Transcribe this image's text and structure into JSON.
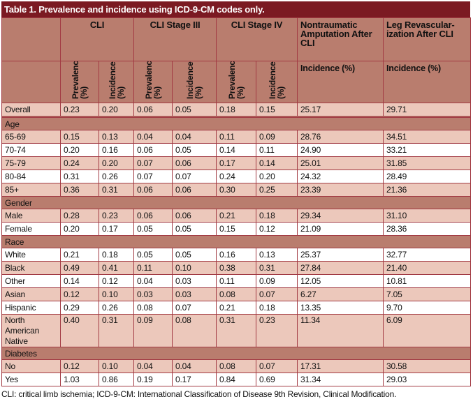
{
  "title": "Table 1. Prevalence and incidence using ICD-9-CM codes only.",
  "header": {
    "groups": [
      "CLI",
      "CLI Stage III",
      "CLI Stage IV",
      "Nontraumatic Amputation After CLI",
      "Leg Revascular-ization After CLI"
    ],
    "prevalence": "Prevalence (%)",
    "incidence": "Incidence (%)"
  },
  "rows": [
    {
      "type": "data",
      "shade": "light",
      "label": "Overall",
      "values": [
        "0.23",
        "0.20",
        "0.06",
        "0.05",
        "0.18",
        "0.15",
        "25.17",
        "29.71"
      ]
    },
    {
      "type": "section",
      "label": ""
    },
    {
      "type": "section",
      "label": "Age"
    },
    {
      "type": "data",
      "shade": "light",
      "label": "65-69",
      "values": [
        "0.15",
        "0.13",
        "0.04",
        "0.04",
        "0.11",
        "0.09",
        "28.76",
        "34.51"
      ]
    },
    {
      "type": "data",
      "shade": "white",
      "label": "70-74",
      "values": [
        "0.20",
        "0.16",
        "0.06",
        "0.05",
        "0.14",
        "0.11",
        "24.90",
        "33.21"
      ]
    },
    {
      "type": "data",
      "shade": "light",
      "label": "75-79",
      "values": [
        "0.24",
        "0.20",
        "0.07",
        "0.06",
        "0.17",
        "0.14",
        "25.01",
        "31.85"
      ]
    },
    {
      "type": "data",
      "shade": "white",
      "label": "80-84",
      "values": [
        "0.31",
        "0.26",
        "0.07",
        "0.07",
        "0.24",
        "0.20",
        "24.32",
        "28.49"
      ]
    },
    {
      "type": "data",
      "shade": "light",
      "label": "85+",
      "values": [
        "0.36",
        "0.31",
        "0.06",
        "0.06",
        "0.30",
        "0.25",
        "23.39",
        "21.36"
      ]
    },
    {
      "type": "section",
      "label": "Gender"
    },
    {
      "type": "data",
      "shade": "light",
      "label": "Male",
      "values": [
        "0.28",
        "0.23",
        "0.06",
        "0.06",
        "0.21",
        "0.18",
        "29.34",
        "31.10"
      ]
    },
    {
      "type": "data",
      "shade": "white",
      "label": "Female",
      "values": [
        "0.20",
        "0.17",
        "0.05",
        "0.05",
        "0.15",
        "0.12",
        "21.09",
        "28.36"
      ]
    },
    {
      "type": "section",
      "label": "Race"
    },
    {
      "type": "data",
      "shade": "white",
      "label": "White",
      "values": [
        "0.21",
        "0.18",
        "0.05",
        "0.05",
        "0.16",
        "0.13",
        "25.37",
        "32.77"
      ]
    },
    {
      "type": "data",
      "shade": "light",
      "label": "Black",
      "values": [
        "0.49",
        "0.41",
        "0.11",
        "0.10",
        "0.38",
        "0.31",
        "27.84",
        "21.40"
      ]
    },
    {
      "type": "data",
      "shade": "white",
      "label": "Other",
      "values": [
        "0.14",
        "0.12",
        "0.04",
        "0.03",
        "0.11",
        "0.09",
        "12.05",
        "10.81"
      ]
    },
    {
      "type": "data",
      "shade": "light",
      "label": "Asian",
      "values": [
        "0.12",
        "0.10",
        "0.03",
        "0.03",
        "0.08",
        "0.07",
        "6.27",
        "7.05"
      ]
    },
    {
      "type": "data",
      "shade": "white",
      "label": "Hispanic",
      "values": [
        "0.29",
        "0.26",
        "0.08",
        "0.07",
        "0.21",
        "0.18",
        "13.35",
        "9.70"
      ]
    },
    {
      "type": "data",
      "shade": "light",
      "tall": true,
      "label": "North American Native",
      "values": [
        "0.40",
        "0.31",
        "0.09",
        "0.08",
        "0.31",
        "0.23",
        "11.34",
        "6.09"
      ]
    },
    {
      "type": "section",
      "label": "Diabetes"
    },
    {
      "type": "data",
      "shade": "light",
      "label": "No",
      "values": [
        "0.12",
        "0.10",
        "0.04",
        "0.04",
        "0.08",
        "0.07",
        "17.31",
        "30.58"
      ]
    },
    {
      "type": "data",
      "shade": "white",
      "label": "Yes",
      "values": [
        "1.03",
        "0.86",
        "0.19",
        "0.17",
        "0.84",
        "0.69",
        "31.34",
        "29.03"
      ]
    }
  ],
  "footnote": "CLI: critical limb ischemia; ICD-9-CM: International Classification of Disease 9th Revision, Clinical Modification.",
  "colors": {
    "title_bg": "#7b1a22",
    "header_bg": "#b97d6e",
    "light_row": "#ecc8bb",
    "border": "#a23a43"
  }
}
